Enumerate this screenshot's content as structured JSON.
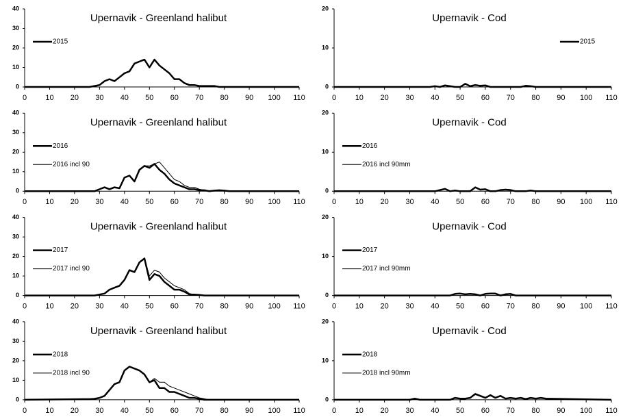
{
  "chart_data": [
    {
      "type": "line",
      "title": "Upernavik - Greenland halibut",
      "legend": "upper left",
      "x": [
        0,
        24,
        26,
        28,
        30,
        32,
        34,
        36,
        38,
        40,
        42,
        44,
        46,
        48,
        50,
        52,
        54,
        56,
        58,
        60,
        62,
        64,
        66,
        68,
        70,
        72,
        74,
        76,
        78,
        80,
        82,
        84,
        110
      ],
      "series": [
        {
          "name": "2015",
          "color": "#000000",
          "line_width": 2.5,
          "values": [
            0,
            0,
            0,
            0.5,
            1,
            3,
            4,
            3,
            5,
            7,
            8,
            12,
            13,
            14,
            10,
            14,
            11,
            9,
            7,
            4,
            4,
            2,
            1,
            1,
            0.5,
            0.5,
            0.5,
            0.5,
            0,
            0,
            0,
            0,
            0
          ]
        }
      ],
      "xlim": [
        0,
        110
      ],
      "xticks": [
        0,
        10,
        20,
        30,
        40,
        50,
        60,
        70,
        80,
        90,
        100,
        110
      ],
      "ylim": [
        0,
        40
      ],
      "yticks": [
        0,
        10,
        20,
        30,
        40
      ]
    },
    {
      "type": "line",
      "title": "Upernavik - Cod",
      "legend": "upper right",
      "x": [
        0,
        24,
        26,
        28,
        30,
        32,
        34,
        36,
        38,
        40,
        42,
        44,
        46,
        48,
        50,
        52,
        54,
        56,
        58,
        60,
        62,
        64,
        66,
        68,
        70,
        72,
        74,
        76,
        78,
        80,
        82,
        84,
        110
      ],
      "series": [
        {
          "name": "2015",
          "color": "#000000",
          "line_width": 2.5,
          "values": [
            0,
            0,
            0,
            0,
            0,
            0,
            0,
            0,
            0,
            0.2,
            0,
            0.4,
            0.2,
            0,
            0,
            0.8,
            0.2,
            0.5,
            0.3,
            0.4,
            0,
            0,
            0,
            0,
            0,
            0,
            0,
            0.3,
            0.2,
            0,
            0,
            0,
            0
          ]
        }
      ],
      "xlim": [
        0,
        110
      ],
      "xticks": [
        0,
        10,
        20,
        30,
        40,
        50,
        60,
        70,
        80,
        90,
        100,
        110
      ],
      "ylim": [
        0,
        20
      ],
      "yticks": [
        0,
        10,
        20
      ]
    },
    {
      "type": "line",
      "title": "Upernavik - Greenland halibut",
      "legend": "upper left",
      "x": [
        0,
        24,
        26,
        28,
        30,
        32,
        34,
        36,
        38,
        40,
        42,
        44,
        46,
        48,
        50,
        52,
        54,
        56,
        58,
        60,
        62,
        64,
        66,
        68,
        70,
        72,
        74,
        76,
        78,
        80,
        82,
        84,
        110
      ],
      "series": [
        {
          "name": "2016",
          "color": "#000000",
          "line_width": 2.5,
          "values": [
            0,
            0,
            0,
            0,
            1,
            2,
            1,
            2,
            1.5,
            7,
            8,
            5,
            11,
            13,
            12,
            14,
            11,
            9,
            6,
            4,
            3,
            2,
            1,
            1,
            0.5,
            0.5,
            0,
            0.3,
            0.5,
            0.3,
            0,
            0,
            0
          ]
        },
        {
          "name": "2016 incl 90",
          "color": "#000000",
          "line_width": 1,
          "values": [
            0,
            0,
            0,
            0,
            1,
            2,
            1,
            2,
            1.5,
            7,
            8,
            5,
            11,
            13,
            13,
            14,
            15,
            12,
            9,
            6,
            5,
            3,
            2,
            2,
            1,
            0.5,
            0.3,
            0.3,
            0.5,
            0.3,
            0,
            0,
            0
          ]
        }
      ],
      "xlim": [
        0,
        110
      ],
      "xticks": [
        0,
        10,
        20,
        30,
        40,
        50,
        60,
        70,
        80,
        90,
        100,
        110
      ],
      "ylim": [
        0,
        40
      ],
      "yticks": [
        0,
        10,
        20,
        30,
        40
      ]
    },
    {
      "type": "line",
      "title": "Upernavik - Cod",
      "legend": "upper left",
      "x": [
        0,
        24,
        26,
        28,
        30,
        32,
        34,
        36,
        38,
        40,
        42,
        44,
        46,
        48,
        50,
        52,
        54,
        56,
        58,
        60,
        62,
        64,
        66,
        68,
        70,
        72,
        74,
        76,
        78,
        80,
        82,
        84,
        110
      ],
      "series": [
        {
          "name": "2016",
          "color": "#000000",
          "line_width": 2.5,
          "values": [
            0,
            0,
            0,
            0,
            0,
            0,
            0,
            0,
            0,
            0,
            0.3,
            0.6,
            0,
            0.2,
            0,
            0,
            0,
            1,
            0.4,
            0.5,
            0,
            0,
            0.3,
            0.4,
            0.3,
            0,
            0,
            0,
            0.2,
            0,
            0,
            0,
            0
          ]
        },
        {
          "name": "2016 incl 90mm",
          "color": "#000000",
          "line_width": 1,
          "values": [
            0,
            0,
            0,
            0,
            0,
            0,
            0,
            0,
            0,
            0,
            0.3,
            0.5,
            0,
            0.2,
            0,
            0,
            0.2,
            0.9,
            0.5,
            0.4,
            0,
            0,
            0.3,
            0.5,
            0.4,
            0,
            0,
            0,
            0.2,
            0,
            0,
            0,
            0
          ]
        }
      ],
      "xlim": [
        0,
        110
      ],
      "xticks": [
        0,
        10,
        20,
        30,
        40,
        50,
        60,
        70,
        80,
        90,
        100,
        110
      ],
      "ylim": [
        0,
        20
      ],
      "yticks": [
        0,
        10,
        20
      ]
    },
    {
      "type": "line",
      "title": "Upernavik - Greenland halibut",
      "legend": "upper left",
      "x": [
        0,
        24,
        26,
        28,
        30,
        32,
        34,
        36,
        38,
        40,
        42,
        44,
        46,
        48,
        50,
        52,
        54,
        56,
        58,
        60,
        62,
        64,
        66,
        68,
        70,
        72,
        74,
        76,
        78,
        80,
        82,
        84,
        110
      ],
      "series": [
        {
          "name": "2017",
          "color": "#000000",
          "line_width": 2.5,
          "values": [
            0,
            0,
            0,
            0,
            0.5,
            1,
            3,
            4,
            5,
            8,
            13,
            12,
            17,
            19,
            8,
            11,
            10,
            7,
            5,
            3,
            3,
            2,
            0.5,
            0.5,
            0.3,
            0,
            0,
            0,
            0,
            0,
            0,
            0,
            0
          ]
        },
        {
          "name": "2017 incl 90",
          "color": "#000000",
          "line_width": 1,
          "values": [
            0,
            0,
            0,
            0,
            0.5,
            1,
            3,
            4,
            5,
            8,
            13,
            12,
            17,
            19,
            10,
            13,
            12,
            9,
            7,
            5,
            4,
            3,
            1,
            0.5,
            0.3,
            0.2,
            0,
            0,
            0,
            0,
            0,
            0,
            0
          ]
        }
      ],
      "xlim": [
        0,
        110
      ],
      "xticks": [
        0,
        10,
        20,
        30,
        40,
        50,
        60,
        70,
        80,
        90,
        100,
        110
      ],
      "ylim": [
        0,
        40
      ],
      "yticks": [
        0,
        10,
        20,
        30,
        40
      ]
    },
    {
      "type": "line",
      "title": "Upernavik - Cod",
      "legend": "upper left",
      "x": [
        0,
        24,
        26,
        28,
        30,
        32,
        34,
        36,
        38,
        40,
        42,
        44,
        46,
        48,
        50,
        52,
        54,
        56,
        58,
        60,
        62,
        64,
        66,
        68,
        70,
        72,
        74,
        76,
        78,
        80,
        82,
        84,
        110
      ],
      "series": [
        {
          "name": "2017",
          "color": "#000000",
          "line_width": 2.5,
          "values": [
            0,
            0,
            0,
            0,
            0,
            0,
            0,
            0,
            0,
            0,
            0,
            0,
            0,
            0.4,
            0.5,
            0.3,
            0.4,
            0.3,
            0,
            0.4,
            0.5,
            0.5,
            0,
            0.3,
            0.4,
            0,
            0,
            0,
            0,
            0,
            0,
            0,
            0
          ]
        },
        {
          "name": "2017 incl 90mm",
          "color": "#000000",
          "line_width": 1,
          "values": [
            0,
            0,
            0,
            0,
            0,
            0,
            0,
            0,
            0,
            0,
            0,
            0,
            0,
            0.3,
            0.5,
            0.4,
            0.3,
            0.4,
            0,
            0.5,
            0.5,
            0.4,
            0,
            0.4,
            0.3,
            0,
            0,
            0,
            0,
            0,
            0,
            0,
            0
          ]
        }
      ],
      "xlim": [
        0,
        110
      ],
      "xticks": [
        0,
        10,
        20,
        30,
        40,
        50,
        60,
        70,
        80,
        90,
        100,
        110
      ],
      "ylim": [
        0,
        20
      ],
      "yticks": [
        0,
        10,
        20
      ]
    },
    {
      "type": "line",
      "title": "Upernavik - Greenland halibut",
      "legend": "upper left",
      "x": [
        0,
        24,
        26,
        28,
        30,
        32,
        34,
        36,
        38,
        40,
        42,
        44,
        46,
        48,
        50,
        52,
        54,
        56,
        58,
        60,
        62,
        64,
        66,
        68,
        70,
        72,
        74,
        76,
        78,
        80,
        82,
        84,
        110
      ],
      "series": [
        {
          "name": "2018",
          "color": "#000000",
          "line_width": 2.5,
          "values": [
            0,
            0.3,
            0.3,
            0.5,
            1,
            2,
            5,
            8,
            9,
            15,
            17,
            16,
            15,
            13,
            9,
            10,
            6,
            6,
            4,
            4,
            3,
            2,
            1,
            1,
            0.5,
            0,
            0,
            0,
            0,
            0,
            0,
            0,
            0
          ]
        },
        {
          "name": "2018 incl 90",
          "color": "#000000",
          "line_width": 1,
          "values": [
            0,
            0.3,
            0.3,
            0.5,
            1,
            2,
            5,
            8,
            9,
            15,
            17,
            16,
            15,
            13,
            9,
            11,
            9,
            9,
            7,
            6,
            5,
            4,
            3,
            2,
            1,
            0.5,
            0,
            0,
            0,
            0,
            0,
            0,
            0
          ]
        }
      ],
      "xlim": [
        0,
        110
      ],
      "xticks": [
        0,
        10,
        20,
        30,
        40,
        50,
        60,
        70,
        80,
        90,
        100,
        110
      ],
      "ylim": [
        0,
        40
      ],
      "yticks": [
        0,
        10,
        20,
        30,
        40
      ]
    },
    {
      "type": "line",
      "title": "Upernavik - Cod",
      "legend": "upper left",
      "x": [
        0,
        24,
        26,
        28,
        30,
        32,
        34,
        36,
        38,
        40,
        42,
        44,
        46,
        48,
        50,
        52,
        54,
        56,
        58,
        60,
        62,
        64,
        66,
        68,
        70,
        72,
        74,
        76,
        78,
        80,
        82,
        84,
        110
      ],
      "series": [
        {
          "name": "2018",
          "color": "#000000",
          "line_width": 2.5,
          "values": [
            0,
            0,
            0,
            0,
            0,
            0.3,
            0,
            0,
            0,
            0,
            0,
            0,
            0,
            0.5,
            0.3,
            0.3,
            0.5,
            1.5,
            1,
            0.5,
            1.2,
            0.5,
            1,
            0.3,
            0.5,
            0.3,
            0.5,
            0.2,
            0.5,
            0.3,
            0.5,
            0.3,
            0
          ]
        },
        {
          "name": "2018 incl 90mm",
          "color": "#000000",
          "line_width": 1,
          "values": [
            0,
            0,
            0,
            0,
            0,
            0.3,
            0,
            0,
            0,
            0,
            0,
            0,
            0,
            0.4,
            0.3,
            0.2,
            0.5,
            1.3,
            1,
            0.6,
            1,
            0.5,
            0.9,
            0.3,
            0.4,
            0.3,
            0.4,
            0.2,
            0.4,
            0.3,
            0.4,
            0.3,
            0
          ]
        }
      ],
      "xlim": [
        0,
        110
      ],
      "xticks": [
        0,
        10,
        20,
        30,
        40,
        50,
        60,
        70,
        80,
        90,
        100,
        110
      ],
      "ylim": [
        0,
        20
      ],
      "yticks": [
        0,
        10,
        20
      ]
    }
  ]
}
